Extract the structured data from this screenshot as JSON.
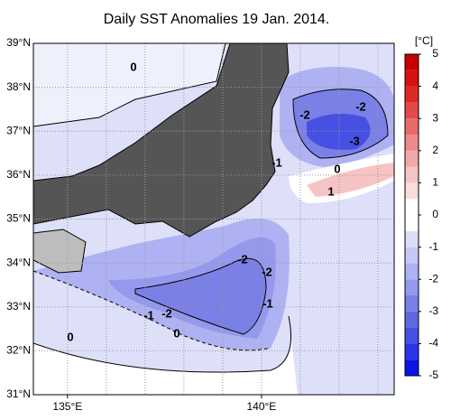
{
  "title": "Daily SST Anomalies 19 Jan. 2014.",
  "map": {
    "lonlim": [
      134.12,
      143.42
    ],
    "latlim": [
      31,
      39
    ],
    "lat_ticks": [
      {
        "value": 39,
        "label": "39°N"
      },
      {
        "value": 38,
        "label": "38°N"
      },
      {
        "value": 37,
        "label": "37°N"
      },
      {
        "value": 36,
        "label": "36°N"
      },
      {
        "value": 35,
        "label": "35°N"
      },
      {
        "value": 34,
        "label": "34°N"
      },
      {
        "value": 33,
        "label": "33°N"
      },
      {
        "value": 32,
        "label": "32°N"
      },
      {
        "value": 31,
        "label": "31°N"
      }
    ],
    "lon_ticks": [
      {
        "value": 135,
        "label": "135°E"
      },
      {
        "value": 140,
        "label": "140°E"
      }
    ],
    "contour_labels": [
      "0",
      "-2",
      "-2",
      "-3",
      "0",
      "1",
      "-1",
      "-2",
      "-2",
      "-1",
      "-1",
      "-2",
      "0",
      "0"
    ]
  },
  "colorbar": {
    "unit": "[°C]",
    "lim": [
      -5,
      5
    ],
    "ticks": [
      5,
      4,
      3,
      2,
      1,
      0,
      -1,
      -2,
      -3,
      -4,
      -5
    ],
    "colors": [
      "#0a14e6",
      "#2a34e8",
      "#4650e2",
      "#6068e0",
      "#7a80e6",
      "#9499ec",
      "#aeb2f2",
      "#c6c9f6",
      "#dcdef9",
      "#ffffff",
      "#ffffff",
      "#f9dcdc",
      "#f6c4c4",
      "#f2a8a8",
      "#ee8a8a",
      "#ea6a6a",
      "#e44848",
      "#de2828",
      "#d81010",
      "#c80000"
    ]
  }
}
